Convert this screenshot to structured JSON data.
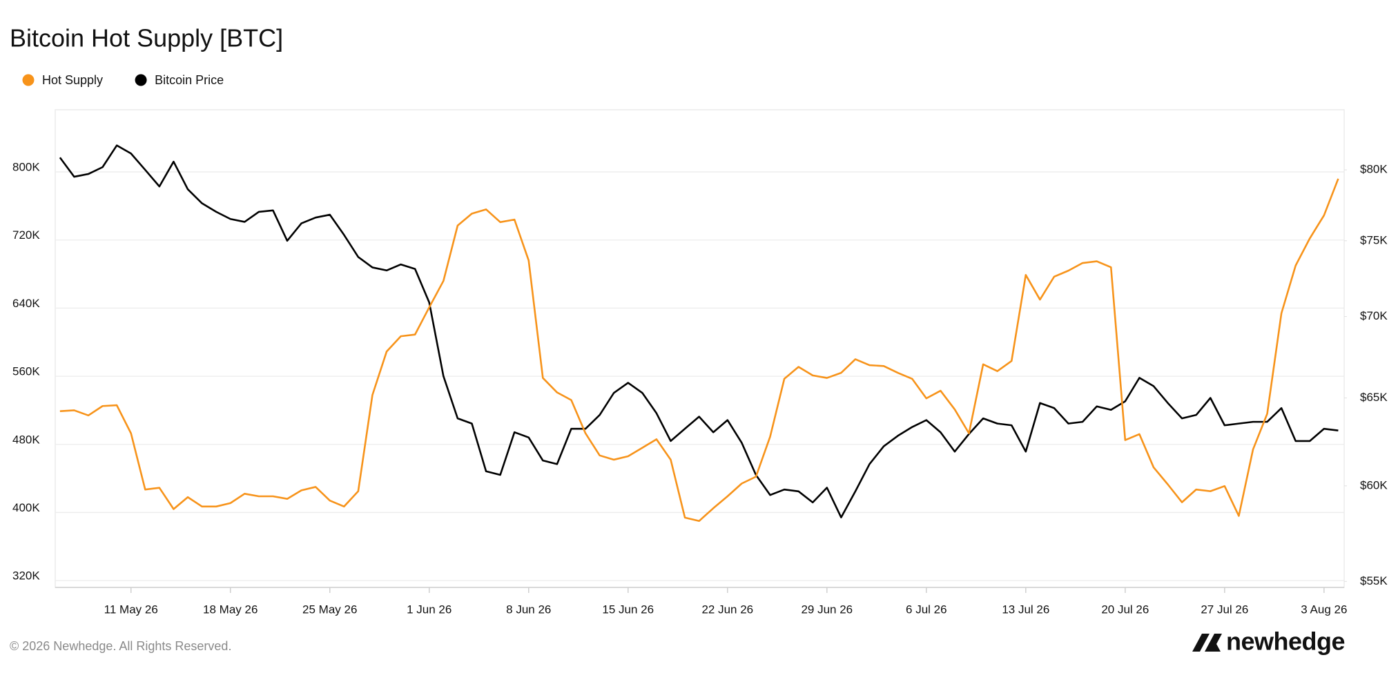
{
  "chart_data": {
    "type": "line",
    "title": "Bitcoin Hot Supply [BTC]",
    "x": [
      "2026-05-06",
      "2026-05-07",
      "2026-05-08",
      "2026-05-09",
      "2026-05-10",
      "2026-05-11",
      "2026-05-12",
      "2026-05-13",
      "2026-05-14",
      "2026-05-15",
      "2026-05-16",
      "2026-05-17",
      "2026-05-18",
      "2026-05-19",
      "2026-05-20",
      "2026-05-21",
      "2026-05-22",
      "2026-05-23",
      "2026-05-24",
      "2026-05-25",
      "2026-05-26",
      "2026-05-27",
      "2026-05-28",
      "2026-05-29",
      "2026-05-30",
      "2026-05-31",
      "2026-06-01",
      "2026-06-02",
      "2026-06-03",
      "2026-06-04",
      "2026-06-05",
      "2026-06-06",
      "2026-06-07",
      "2026-06-08",
      "2026-06-09",
      "2026-06-10",
      "2026-06-11",
      "2026-06-12",
      "2026-06-13",
      "2026-06-14",
      "2026-06-15",
      "2026-06-16",
      "2026-06-17",
      "2026-06-18",
      "2026-06-19",
      "2026-06-20",
      "2026-06-21",
      "2026-06-22",
      "2026-06-23",
      "2026-06-24",
      "2026-06-25",
      "2026-06-26",
      "2026-06-27",
      "2026-06-28",
      "2026-06-29",
      "2026-06-30",
      "2026-07-01",
      "2026-07-02",
      "2026-07-03",
      "2026-07-04",
      "2026-07-05",
      "2026-07-06",
      "2026-07-07",
      "2026-07-08",
      "2026-07-09",
      "2026-07-10",
      "2026-07-11",
      "2026-07-12",
      "2026-07-13",
      "2026-07-14",
      "2026-07-15",
      "2026-07-16",
      "2026-07-17",
      "2026-07-18",
      "2026-07-19",
      "2026-07-20",
      "2026-07-21",
      "2026-07-22",
      "2026-07-23",
      "2026-07-24",
      "2026-07-25",
      "2026-07-26",
      "2026-07-27",
      "2026-07-28",
      "2026-07-29",
      "2026-07-30",
      "2026-07-31",
      "2026-08-01",
      "2026-08-02",
      "2026-08-03",
      "2026-08-04"
    ],
    "series": [
      {
        "name": "Hot Supply",
        "color": "#f7931a",
        "values": [
          519000,
          520000,
          514000,
          525000,
          526000,
          493000,
          427000,
          429000,
          404000,
          418000,
          407000,
          407000,
          411000,
          422000,
          419000,
          419000,
          416000,
          426000,
          430000,
          414000,
          407000,
          425000,
          538000,
          589000,
          607000,
          609000,
          641000,
          672000,
          737000,
          751000,
          756000,
          741000,
          744000,
          696000,
          558000,
          541000,
          532000,
          493000,
          467000,
          462000,
          466000,
          476000,
          486000,
          462000,
          394000,
          390000,
          405000,
          419000,
          434000,
          442000,
          489000,
          557000,
          571000,
          561000,
          558000,
          564000,
          580000,
          573000,
          572000,
          564000,
          557000,
          534000,
          543000,
          521000,
          493000,
          574000,
          566000,
          578000,
          679000,
          650000,
          677000,
          684000,
          693000,
          695000,
          688000,
          485000,
          492000,
          453000,
          433000,
          412000,
          427000,
          425000,
          431000,
          396000,
          474000,
          516000,
          634000,
          690000,
          722000,
          749000,
          792000
        ]
      },
      {
        "name": "Bitcoin Price",
        "color": "#000000",
        "axis": "y2",
        "values": [
          80900,
          79500,
          79700,
          80200,
          81800,
          81200,
          80000,
          78800,
          80600,
          78600,
          77600,
          77000,
          76500,
          76300,
          77000,
          77100,
          75000,
          76200,
          76600,
          76800,
          75400,
          73900,
          73200,
          73000,
          73400,
          73100,
          70900,
          66300,
          63800,
          63500,
          60800,
          60600,
          63000,
          62700,
          61400,
          61200,
          63200,
          63200,
          64000,
          65300,
          65900,
          65300,
          64100,
          62500,
          63200,
          63900,
          63000,
          63700,
          62400,
          60600,
          59500,
          59800,
          59700,
          59100,
          59900,
          58300,
          59700,
          61200,
          62200,
          62800,
          63300,
          63700,
          63000,
          61900,
          62900,
          63800,
          63500,
          63400,
          61900,
          64700,
          64400,
          63500,
          63600,
          64500,
          64300,
          64800,
          66200,
          65700,
          64700,
          63800,
          64000,
          65000,
          63400,
          63500,
          63600,
          63600,
          64400,
          62500,
          62500,
          63200,
          63100
        ]
      }
    ],
    "xlim": [
      "2026-05-05T16:00:00Z",
      "2026-08-04T10:00:00Z"
    ],
    "xticks": [
      {
        "value": "2026-05-11",
        "label": "11 May 26"
      },
      {
        "value": "2026-05-18",
        "label": "18 May 26"
      },
      {
        "value": "2026-05-25",
        "label": "25 May 26"
      },
      {
        "value": "2026-06-01",
        "label": "1 Jun 26"
      },
      {
        "value": "2026-06-08",
        "label": "8 Jun 26"
      },
      {
        "value": "2026-06-15",
        "label": "15 Jun 26"
      },
      {
        "value": "2026-06-22",
        "label": "22 Jun 26"
      },
      {
        "value": "2026-06-29",
        "label": "29 Jun 26"
      },
      {
        "value": "2026-07-06",
        "label": "6 Jul 26"
      },
      {
        "value": "2026-07-13",
        "label": "13 Jul 26"
      },
      {
        "value": "2026-07-20",
        "label": "20 Jul 26"
      },
      {
        "value": "2026-07-27",
        "label": "27 Jul 26"
      },
      {
        "value": "2026-08-03",
        "label": "3 Aug 26"
      }
    ],
    "ylim": [
      312000,
      873000
    ],
    "yticks": [
      {
        "value": 320000,
        "label": "320K"
      },
      {
        "value": 400000,
        "label": "400K"
      },
      {
        "value": 480000,
        "label": "480K"
      },
      {
        "value": 560000,
        "label": "560K"
      },
      {
        "value": 640000,
        "label": "640K"
      },
      {
        "value": 720000,
        "label": "720K"
      },
      {
        "value": 800000,
        "label": "800K"
      }
    ],
    "y2lim": [
      54700,
      84500
    ],
    "y2scale": "log",
    "y2ticks": [
      {
        "value": 55000,
        "label": "$55K"
      },
      {
        "value": 60000,
        "label": "$60K"
      },
      {
        "value": 65000,
        "label": "$65K"
      },
      {
        "value": 70000,
        "label": "$70K"
      },
      {
        "value": 75000,
        "label": "$75K"
      },
      {
        "value": 80000,
        "label": "$80K"
      }
    ],
    "grid": true,
    "legend": "top-left",
    "copyright": "© 2026 Newhedge. All Rights Reserved.",
    "brand": "newhedge"
  }
}
